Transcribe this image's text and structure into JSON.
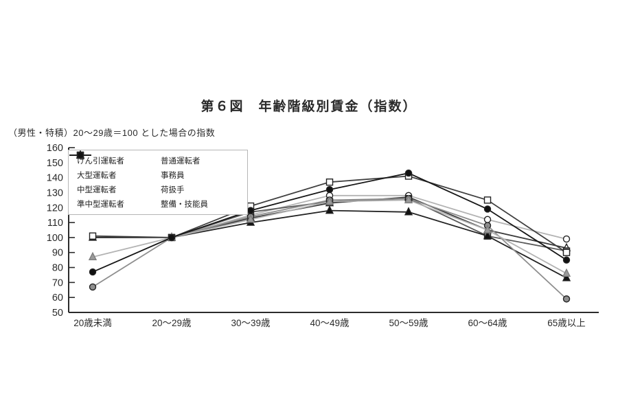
{
  "title": "第６図　年齢階級別賃金（指数）",
  "subtitle": "（男性・特積）20～29歳＝100 とした場合の指数",
  "chart_data": {
    "type": "line",
    "title": "第６図　年齢階級別賃金（指数）",
    "subtitle": "（男性・特積）20～29歳＝100 とした場合の指数",
    "categories": [
      "20歳未満",
      "20～29歳",
      "30～39歳",
      "40～49歳",
      "50～59歳",
      "60～64歳",
      "65歳以上"
    ],
    "ylim": [
      50,
      160
    ],
    "yticks": [
      50,
      60,
      70,
      80,
      90,
      100,
      110,
      120,
      130,
      140,
      150,
      160
    ],
    "grid": false,
    "legend_position": "top-left",
    "axis_color": "#2b2b2b",
    "series": [
      {
        "name": "けん引運転者",
        "marker": "triangle-open",
        "color": "#3a3a3a",
        "values": [
          null,
          100,
          113,
          123,
          127,
          105,
          93
        ]
      },
      {
        "name": "大型運転者",
        "marker": "circle-open",
        "color": "#b3b3b3",
        "values": [
          null,
          100,
          115,
          128,
          128,
          112,
          99
        ]
      },
      {
        "name": "中型運転者",
        "marker": "square-grey",
        "color": "#5a5a5a",
        "values": [
          null,
          100,
          117,
          124,
          126,
          101,
          91
        ]
      },
      {
        "name": "準中型運転者",
        "marker": "triangle-black",
        "color": "#222222",
        "values": [
          100,
          100,
          110,
          118,
          117,
          101,
          73
        ]
      },
      {
        "name": "普通運転者",
        "marker": "circle-grey",
        "color": "#8e8e8e",
        "values": [
          67,
          100,
          114,
          125,
          126,
          108,
          59
        ]
      },
      {
        "name": "事務員",
        "marker": "square-open",
        "color": "#3f3f3f",
        "values": [
          101,
          100,
          121,
          137,
          141,
          125,
          90
        ]
      },
      {
        "name": "荷扱手",
        "marker": "triangle-grey",
        "color": "#b3b3b3",
        "values": [
          87,
          100,
          112,
          124,
          125,
          105,
          76
        ]
      },
      {
        "name": "整備・技能員",
        "marker": "circle-black",
        "color": "#161616",
        "values": [
          77,
          100,
          118,
          132,
          143,
          119,
          85
        ]
      }
    ]
  }
}
